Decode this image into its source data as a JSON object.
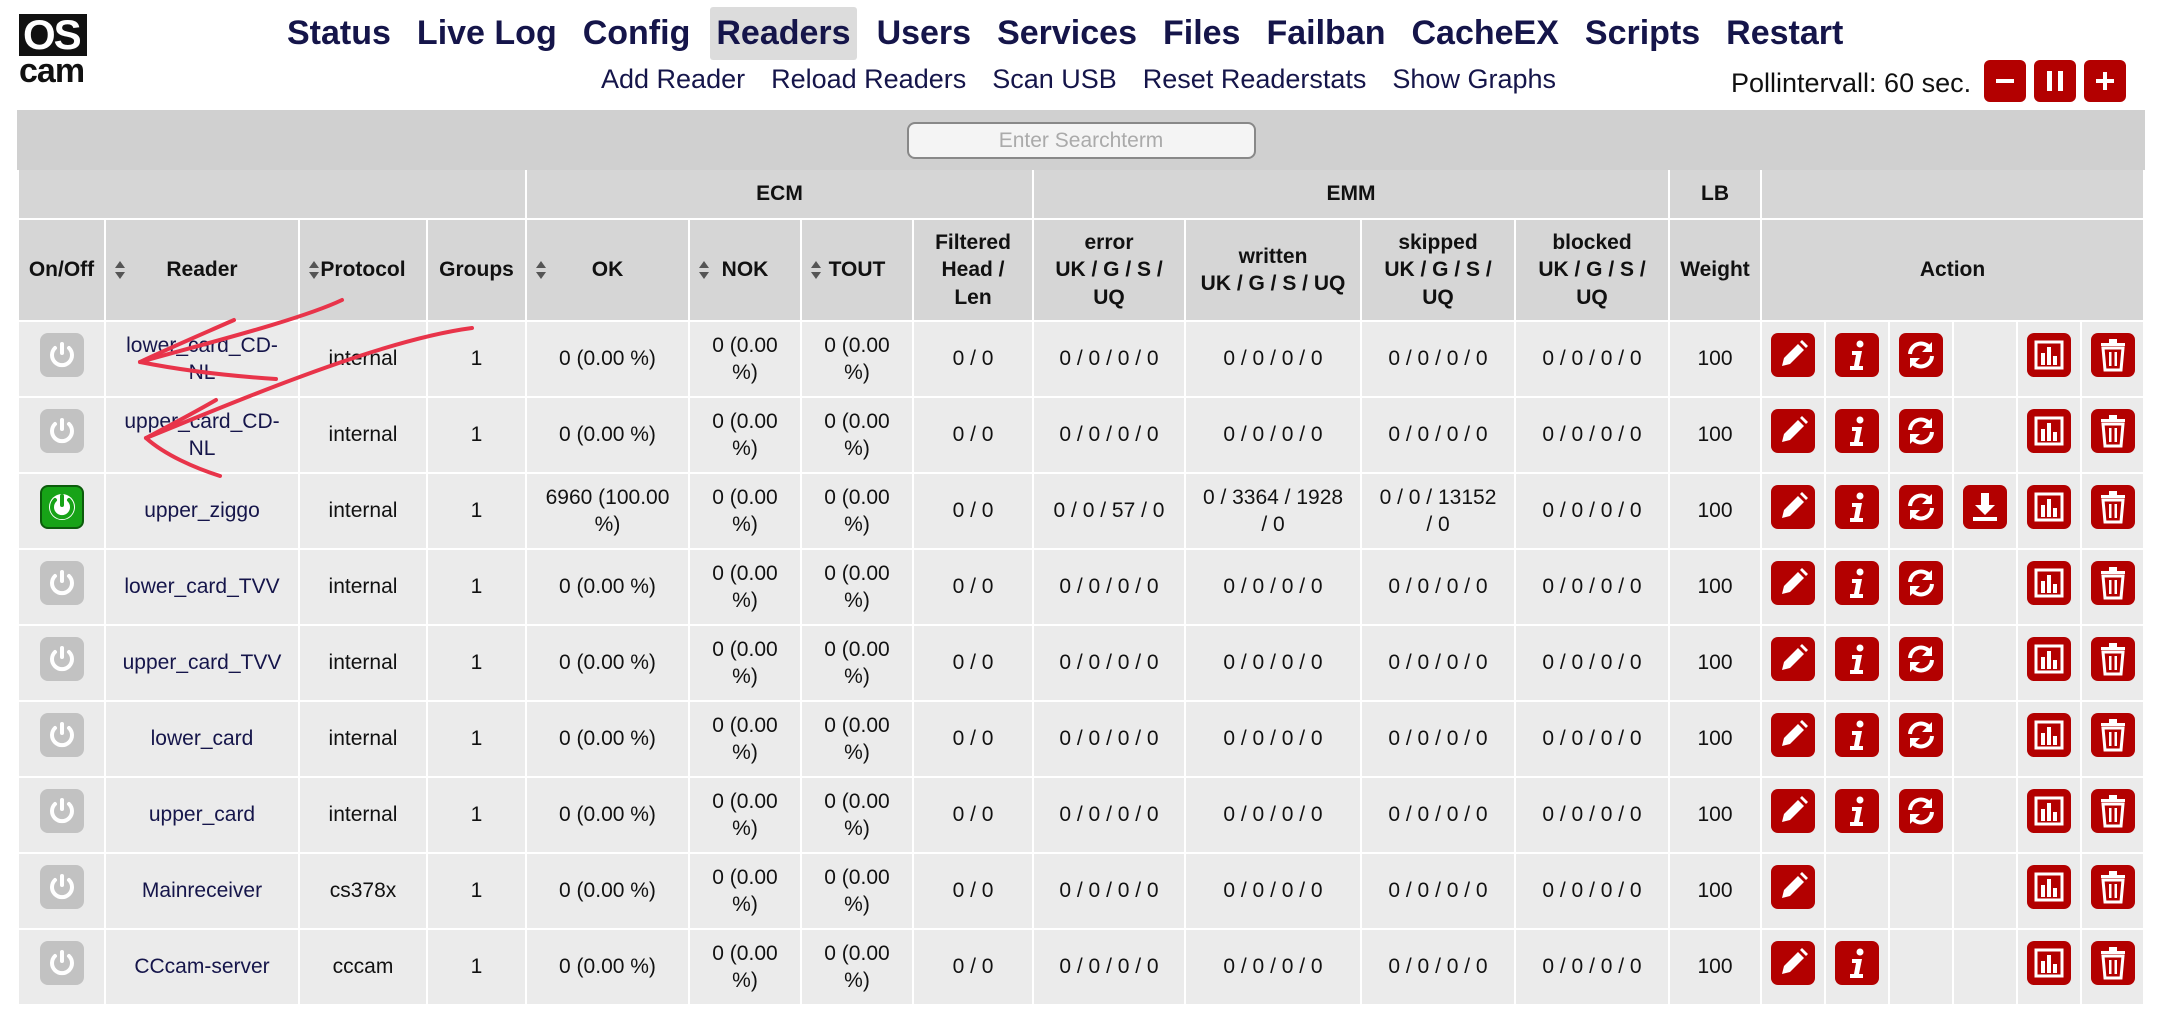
{
  "logo": {
    "top": "OS",
    "bottom": "cam"
  },
  "nav": {
    "items": [
      "Status",
      "Live Log",
      "Config",
      "Readers",
      "Users",
      "Services",
      "Files",
      "Failban",
      "CacheEX",
      "Scripts",
      "Restart"
    ],
    "active": 3
  },
  "subnav": [
    "Add Reader",
    "Reload Readers",
    "Scan USB",
    "Reset Readerstats",
    "Show Graphs"
  ],
  "poll": "Pollintervall: 60 sec.",
  "search": {
    "placeholder": "Enter Searchterm"
  },
  "table": {
    "columns": [
      {
        "label": "On/Off"
      },
      {
        "label": "Reader",
        "sortable": true
      },
      {
        "label": "Protocol",
        "sortable": true
      },
      {
        "label": "Groups"
      },
      {
        "label": "OK",
        "sortable": true,
        "group": "ECM"
      },
      {
        "label": "NOK",
        "sortable": true,
        "group": "ECM"
      },
      {
        "label": "TOUT",
        "sortable": true,
        "group": "ECM"
      },
      {
        "label": "Filtered\nHead /\nLen",
        "group": "ECM"
      },
      {
        "label": "error\nUK / G / S /\nUQ",
        "group": "EMM"
      },
      {
        "label": "written\nUK / G / S / UQ",
        "group": "EMM"
      },
      {
        "label": "skipped\nUK / G / S /\nUQ",
        "group": "EMM"
      },
      {
        "label": "blocked\nUK / G / S /\nUQ",
        "group": "EMM"
      },
      {
        "label": "Weight",
        "group": "LB"
      },
      {
        "label": "Action"
      }
    ],
    "rows": [
      {
        "enabled": false,
        "reader": "lower_card_CD-NL",
        "protocol": "internal",
        "groups": "1",
        "ok": "0 (0.00 %)",
        "nok": "0 (0.00 %)",
        "tout": "0 (0.00 %)",
        "filtered": "0 / 0",
        "error": "0 / 0 / 0 / 0",
        "written": "0 / 0 / 0 / 0",
        "skipped": "0 / 0 / 0 / 0",
        "blocked": "0 / 0 / 0 / 0",
        "weight": "100",
        "actions": [
          "edit",
          "info",
          "refresh",
          "stats",
          "delete"
        ]
      },
      {
        "enabled": false,
        "reader": "upper_card_CD-NL",
        "protocol": "internal",
        "groups": "1",
        "ok": "0 (0.00 %)",
        "nok": "0 (0.00 %)",
        "tout": "0 (0.00 %)",
        "filtered": "0 / 0",
        "error": "0 / 0 / 0 / 0",
        "written": "0 / 0 / 0 / 0",
        "skipped": "0 / 0 / 0 / 0",
        "blocked": "0 / 0 / 0 / 0",
        "weight": "100",
        "actions": [
          "edit",
          "info",
          "refresh",
          "stats",
          "delete"
        ]
      },
      {
        "enabled": true,
        "reader": "upper_ziggo",
        "protocol": "internal",
        "groups": "1",
        "ok": "6960 (100.00 %)",
        "nok": "0 (0.00 %)",
        "tout": "0 (0.00 %)",
        "filtered": "0 / 0",
        "error": "0 / 0 / 57 / 0",
        "written": "0 / 3364 / 1928 / 0",
        "skipped": "0 / 0 / 13152 / 0",
        "blocked": "0 / 0 / 0 / 0",
        "weight": "100",
        "actions": [
          "edit",
          "info",
          "refresh",
          "download",
          "stats",
          "delete"
        ]
      },
      {
        "enabled": false,
        "reader": "lower_card_TVV",
        "protocol": "internal",
        "groups": "1",
        "ok": "0 (0.00 %)",
        "nok": "0 (0.00 %)",
        "tout": "0 (0.00 %)",
        "filtered": "0 / 0",
        "error": "0 / 0 / 0 / 0",
        "written": "0 / 0 / 0 / 0",
        "skipped": "0 / 0 / 0 / 0",
        "blocked": "0 / 0 / 0 / 0",
        "weight": "100",
        "actions": [
          "edit",
          "info",
          "refresh",
          "stats",
          "delete"
        ]
      },
      {
        "enabled": false,
        "reader": "upper_card_TVV",
        "protocol": "internal",
        "groups": "1",
        "ok": "0 (0.00 %)",
        "nok": "0 (0.00 %)",
        "tout": "0 (0.00 %)",
        "filtered": "0 / 0",
        "error": "0 / 0 / 0 / 0",
        "written": "0 / 0 / 0 / 0",
        "skipped": "0 / 0 / 0 / 0",
        "blocked": "0 / 0 / 0 / 0",
        "weight": "100",
        "actions": [
          "edit",
          "info",
          "refresh",
          "stats",
          "delete"
        ]
      },
      {
        "enabled": false,
        "reader": "lower_card",
        "protocol": "internal",
        "groups": "1",
        "ok": "0 (0.00 %)",
        "nok": "0 (0.00 %)",
        "tout": "0 (0.00 %)",
        "filtered": "0 / 0",
        "error": "0 / 0 / 0 / 0",
        "written": "0 / 0 / 0 / 0",
        "skipped": "0 / 0 / 0 / 0",
        "blocked": "0 / 0 / 0 / 0",
        "weight": "100",
        "actions": [
          "edit",
          "info",
          "refresh",
          "stats",
          "delete"
        ]
      },
      {
        "enabled": false,
        "reader": "upper_card",
        "protocol": "internal",
        "groups": "1",
        "ok": "0 (0.00 %)",
        "nok": "0 (0.00 %)",
        "tout": "0 (0.00 %)",
        "filtered": "0 / 0",
        "error": "0 / 0 / 0 / 0",
        "written": "0 / 0 / 0 / 0",
        "skipped": "0 / 0 / 0 / 0",
        "blocked": "0 / 0 / 0 / 0",
        "weight": "100",
        "actions": [
          "edit",
          "info",
          "refresh",
          "stats",
          "delete"
        ]
      },
      {
        "enabled": false,
        "reader": "Mainreceiver",
        "protocol": "cs378x",
        "groups": "1",
        "ok": "0 (0.00 %)",
        "nok": "0 (0.00 %)",
        "tout": "0 (0.00 %)",
        "filtered": "0 / 0",
        "error": "0 / 0 / 0 / 0",
        "written": "0 / 0 / 0 / 0",
        "skipped": "0 / 0 / 0 / 0",
        "blocked": "0 / 0 / 0 / 0",
        "weight": "100",
        "actions": [
          "edit",
          "stats",
          "delete"
        ]
      },
      {
        "enabled": false,
        "reader": "CCcam-server",
        "protocol": "cccam",
        "groups": "1",
        "ok": "0 (0.00 %)",
        "nok": "0 (0.00 %)",
        "tout": "0 (0.00 %)",
        "filtered": "0 / 0",
        "error": "0 / 0 / 0 / 0",
        "written": "0 / 0 / 0 / 0",
        "skipped": "0 / 0 / 0 / 0",
        "blocked": "0 / 0 / 0 / 0",
        "weight": "100",
        "actions": [
          "edit",
          "info",
          "stats",
          "delete"
        ]
      }
    ]
  }
}
